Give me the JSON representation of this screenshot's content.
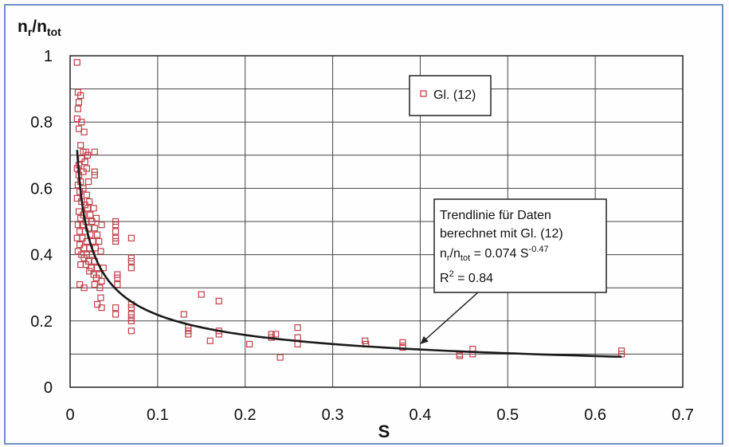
{
  "chart_data": {
    "type": "scatter",
    "ylabel_parts": {
      "base1": "n",
      "sub1": "r",
      "slash": "/n",
      "sub2": "tot"
    },
    "xlabel": "S",
    "xlim": [
      0,
      0.7
    ],
    "ylim": [
      0,
      1
    ],
    "xticks": [
      "0",
      "0.1",
      "0.2",
      "0.3",
      "0.4",
      "0.5",
      "0.6",
      "0.7"
    ],
    "yticks": [
      "0",
      "0.2",
      "0.4",
      "0.6",
      "0.8",
      "1"
    ],
    "grid": true,
    "legend_position": "top-right",
    "marker_color": "#c0404a",
    "series": [
      {
        "name": "Gl. (12)",
        "points": [
          [
            0.008,
            0.98
          ],
          [
            0.009,
            0.89
          ],
          [
            0.012,
            0.88
          ],
          [
            0.01,
            0.86
          ],
          [
            0.009,
            0.84
          ],
          [
            0.008,
            0.81
          ],
          [
            0.013,
            0.8
          ],
          [
            0.01,
            0.78
          ],
          [
            0.016,
            0.77
          ],
          [
            0.012,
            0.73
          ],
          [
            0.018,
            0.71
          ],
          [
            0.015,
            0.71
          ],
          [
            0.02,
            0.7
          ],
          [
            0.028,
            0.71
          ],
          [
            0.013,
            0.69
          ],
          [
            0.017,
            0.68
          ],
          [
            0.01,
            0.67
          ],
          [
            0.019,
            0.66
          ],
          [
            0.008,
            0.66
          ],
          [
            0.015,
            0.65
          ],
          [
            0.028,
            0.65
          ],
          [
            0.01,
            0.64
          ],
          [
            0.028,
            0.64
          ],
          [
            0.012,
            0.62
          ],
          [
            0.021,
            0.62
          ],
          [
            0.009,
            0.61
          ],
          [
            0.015,
            0.6
          ],
          [
            0.011,
            0.59
          ],
          [
            0.019,
            0.58
          ],
          [
            0.008,
            0.57
          ],
          [
            0.022,
            0.56
          ],
          [
            0.013,
            0.56
          ],
          [
            0.017,
            0.55
          ],
          [
            0.02,
            0.54
          ],
          [
            0.027,
            0.54
          ],
          [
            0.01,
            0.53
          ],
          [
            0.015,
            0.52
          ],
          [
            0.023,
            0.52
          ],
          [
            0.012,
            0.51
          ],
          [
            0.03,
            0.51
          ],
          [
            0.018,
            0.5
          ],
          [
            0.025,
            0.5
          ],
          [
            0.009,
            0.49
          ],
          [
            0.014,
            0.49
          ],
          [
            0.021,
            0.48
          ],
          [
            0.028,
            0.48
          ],
          [
            0.036,
            0.49
          ],
          [
            0.011,
            0.47
          ],
          [
            0.017,
            0.47
          ],
          [
            0.023,
            0.46
          ],
          [
            0.031,
            0.46
          ],
          [
            0.008,
            0.45
          ],
          [
            0.014,
            0.45
          ],
          [
            0.019,
            0.44
          ],
          [
            0.026,
            0.44
          ],
          [
            0.033,
            0.44
          ],
          [
            0.011,
            0.43
          ],
          [
            0.016,
            0.42
          ],
          [
            0.022,
            0.42
          ],
          [
            0.029,
            0.42
          ],
          [
            0.009,
            0.41
          ],
          [
            0.013,
            0.4
          ],
          [
            0.019,
            0.4
          ],
          [
            0.025,
            0.4
          ],
          [
            0.035,
            0.41
          ],
          [
            0.016,
            0.39
          ],
          [
            0.021,
            0.38
          ],
          [
            0.028,
            0.38
          ],
          [
            0.012,
            0.37
          ],
          [
            0.018,
            0.37
          ],
          [
            0.024,
            0.36
          ],
          [
            0.031,
            0.36
          ],
          [
            0.038,
            0.36
          ],
          [
            0.022,
            0.35
          ],
          [
            0.027,
            0.34
          ],
          [
            0.033,
            0.34
          ],
          [
            0.03,
            0.33
          ],
          [
            0.036,
            0.32
          ],
          [
            0.028,
            0.31
          ],
          [
            0.034,
            0.3
          ],
          [
            0.011,
            0.31
          ],
          [
            0.016,
            0.3
          ],
          [
            0.035,
            0.27
          ],
          [
            0.031,
            0.25
          ],
          [
            0.036,
            0.24
          ],
          [
            0.052,
            0.5
          ],
          [
            0.052,
            0.49
          ],
          [
            0.052,
            0.47
          ],
          [
            0.052,
            0.45
          ],
          [
            0.052,
            0.44
          ],
          [
            0.054,
            0.34
          ],
          [
            0.054,
            0.33
          ],
          [
            0.054,
            0.31
          ],
          [
            0.052,
            0.24
          ],
          [
            0.052,
            0.22
          ],
          [
            0.07,
            0.45
          ],
          [
            0.07,
            0.39
          ],
          [
            0.07,
            0.38
          ],
          [
            0.07,
            0.36
          ],
          [
            0.07,
            0.25
          ],
          [
            0.07,
            0.24
          ],
          [
            0.07,
            0.22
          ],
          [
            0.07,
            0.21
          ],
          [
            0.07,
            0.2
          ],
          [
            0.07,
            0.17
          ],
          [
            0.13,
            0.22
          ],
          [
            0.135,
            0.18
          ],
          [
            0.135,
            0.17
          ],
          [
            0.135,
            0.16
          ],
          [
            0.15,
            0.28
          ],
          [
            0.16,
            0.14
          ],
          [
            0.17,
            0.26
          ],
          [
            0.17,
            0.17
          ],
          [
            0.17,
            0.16
          ],
          [
            0.205,
            0.13
          ],
          [
            0.23,
            0.16
          ],
          [
            0.23,
            0.15
          ],
          [
            0.235,
            0.16
          ],
          [
            0.24,
            0.09
          ],
          [
            0.26,
            0.18
          ],
          [
            0.26,
            0.15
          ],
          [
            0.26,
            0.13
          ],
          [
            0.337,
            0.14
          ],
          [
            0.338,
            0.13
          ],
          [
            0.38,
            0.135
          ],
          [
            0.38,
            0.125
          ],
          [
            0.38,
            0.12
          ],
          [
            0.445,
            0.1
          ],
          [
            0.445,
            0.095
          ],
          [
            0.46,
            0.115
          ],
          [
            0.46,
            0.1
          ],
          [
            0.63,
            0.11
          ],
          [
            0.63,
            0.1
          ]
        ]
      }
    ],
    "trendline": {
      "a": 0.074,
      "b": -0.47,
      "x_from": 0.008,
      "x_to": 0.63,
      "color": "#1a1a1a"
    },
    "annotation": {
      "line1": "Trendlinie für Daten",
      "line2": "berechnet mit Gl. (12)",
      "line3_parts": {
        "a": "n",
        "b": "r",
        "c": "/n",
        "d": "tot",
        "e": " = 0.074 S",
        "f": "-0.47"
      },
      "line4_parts": {
        "a": "R",
        "b": "2",
        "c": " = 0.84"
      },
      "arrow_to": [
        0.4,
        0.13
      ]
    }
  }
}
